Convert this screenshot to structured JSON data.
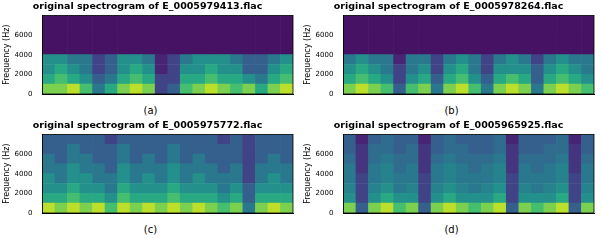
{
  "chart_data": [
    {
      "type": "heatmap",
      "title": "original spectrogram of E_0005979413.flac",
      "y_label": "Frequency (Hz)",
      "caption": "(a)",
      "ylim": [
        0,
        8000
      ],
      "yticks": [
        0,
        2000,
        4000,
        6000
      ],
      "tick_labels": "y",
      "grid": false,
      "color": "viridis",
      "zlim": [
        0,
        1
      ],
      "freq_bins": [
        0,
        1000,
        2000,
        3000,
        4000,
        5000,
        6000,
        7000,
        8000
      ],
      "cells": [
        [
          0.8,
          0.8,
          0.9,
          0.7,
          0.4,
          0.6,
          0.8,
          0.9,
          0.8,
          0.2,
          0.3,
          0.7,
          0.8,
          0.9,
          0.8,
          0.7,
          0.8,
          0.6,
          0.8,
          0.9
        ],
        [
          0.6,
          0.7,
          0.6,
          0.5,
          0.3,
          0.4,
          0.6,
          0.7,
          0.6,
          0.2,
          0.2,
          0.6,
          0.6,
          0.7,
          0.6,
          0.6,
          0.5,
          0.4,
          0.6,
          0.7
        ],
        [
          0.5,
          0.6,
          0.5,
          0.4,
          0.2,
          0.3,
          0.5,
          0.6,
          0.5,
          0.1,
          0.2,
          0.5,
          0.5,
          0.6,
          0.5,
          0.5,
          0.3,
          0.3,
          0.5,
          0.6
        ],
        [
          0.5,
          0.5,
          0.4,
          0.4,
          0.2,
          0.3,
          0.5,
          0.5,
          0.4,
          0.1,
          0.2,
          0.4,
          0.5,
          0.5,
          0.5,
          0.4,
          0.3,
          0.3,
          0.4,
          0.5
        ],
        [
          0.05,
          0.05,
          0.05,
          0.05,
          0.05,
          0.05,
          0.05,
          0.05,
          0.05,
          0.05,
          0.05,
          0.05,
          0.05,
          0.05,
          0.05,
          0.05,
          0.05,
          0.05,
          0.05,
          0.05
        ],
        [
          0.05,
          0.05,
          0.05,
          0.05,
          0.05,
          0.05,
          0.05,
          0.05,
          0.05,
          0.05,
          0.05,
          0.05,
          0.05,
          0.05,
          0.05,
          0.05,
          0.05,
          0.05,
          0.05,
          0.05
        ],
        [
          0.05,
          0.05,
          0.05,
          0.05,
          0.05,
          0.05,
          0.05,
          0.05,
          0.05,
          0.05,
          0.05,
          0.05,
          0.05,
          0.05,
          0.05,
          0.05,
          0.05,
          0.05,
          0.05,
          0.05
        ],
        [
          0.05,
          0.05,
          0.05,
          0.05,
          0.05,
          0.05,
          0.05,
          0.05,
          0.05,
          0.05,
          0.05,
          0.05,
          0.05,
          0.05,
          0.05,
          0.05,
          0.05,
          0.05,
          0.05,
          0.05
        ]
      ]
    },
    {
      "type": "heatmap",
      "title": "original spectrogram of E_0005978264.flac",
      "y_label": "Frequency (Hz)",
      "caption": "(b)",
      "ylim": [
        0,
        8000
      ],
      "yticks": [
        0,
        2000,
        4000,
        6000
      ],
      "tick_labels": "y",
      "grid": false,
      "color": "viridis",
      "zlim": [
        0,
        1
      ],
      "freq_bins": [
        0,
        1000,
        2000,
        3000,
        4000,
        5000,
        6000,
        7000,
        8000
      ],
      "cells": [
        [
          0.8,
          0.9,
          0.8,
          0.7,
          0.3,
          0.7,
          0.8,
          0.4,
          0.8,
          0.9,
          0.7,
          0.4,
          0.8,
          0.9,
          0.8,
          0.4,
          0.8,
          0.9,
          0.8,
          0.7
        ],
        [
          0.6,
          0.7,
          0.6,
          0.5,
          0.2,
          0.5,
          0.6,
          0.3,
          0.6,
          0.7,
          0.5,
          0.3,
          0.6,
          0.7,
          0.6,
          0.3,
          0.6,
          0.7,
          0.6,
          0.5
        ],
        [
          0.5,
          0.6,
          0.5,
          0.4,
          0.2,
          0.4,
          0.5,
          0.2,
          0.5,
          0.6,
          0.4,
          0.2,
          0.5,
          0.5,
          0.5,
          0.3,
          0.5,
          0.6,
          0.5,
          0.4
        ],
        [
          0.4,
          0.5,
          0.4,
          0.4,
          0.1,
          0.4,
          0.4,
          0.2,
          0.4,
          0.5,
          0.4,
          0.2,
          0.4,
          0.5,
          0.4,
          0.2,
          0.4,
          0.5,
          0.4,
          0.4
        ],
        [
          0.05,
          0.05,
          0.05,
          0.05,
          0.05,
          0.05,
          0.05,
          0.05,
          0.05,
          0.05,
          0.05,
          0.05,
          0.05,
          0.05,
          0.05,
          0.05,
          0.05,
          0.05,
          0.05,
          0.05
        ],
        [
          0.05,
          0.05,
          0.05,
          0.05,
          0.05,
          0.05,
          0.05,
          0.05,
          0.05,
          0.05,
          0.05,
          0.05,
          0.05,
          0.05,
          0.05,
          0.05,
          0.05,
          0.05,
          0.05,
          0.05
        ],
        [
          0.05,
          0.05,
          0.05,
          0.05,
          0.05,
          0.05,
          0.05,
          0.05,
          0.05,
          0.05,
          0.05,
          0.05,
          0.05,
          0.05,
          0.05,
          0.05,
          0.05,
          0.05,
          0.05,
          0.05
        ],
        [
          0.05,
          0.05,
          0.05,
          0.05,
          0.05,
          0.05,
          0.05,
          0.05,
          0.05,
          0.05,
          0.05,
          0.05,
          0.05,
          0.05,
          0.05,
          0.05,
          0.05,
          0.05,
          0.05,
          0.05
        ]
      ]
    },
    {
      "type": "heatmap",
      "title": "original spectrogram of E_0005975772.flac",
      "y_label": "Frequency (Hz)",
      "caption": "(c)",
      "ylim": [
        0,
        8000
      ],
      "yticks": [
        0,
        2000,
        4000,
        6000
      ],
      "tick_labels": "y",
      "grid": false,
      "color": "viridis",
      "zlim": [
        0,
        1
      ],
      "freq_bins": [
        0,
        1000,
        2000,
        3000,
        4000,
        5000,
        6000,
        7000,
        8000
      ],
      "cells": [
        [
          0.9,
          0.8,
          0.9,
          0.8,
          0.9,
          0.7,
          0.9,
          0.8,
          0.9,
          0.8,
          0.9,
          0.8,
          0.9,
          0.8,
          0.7,
          0.8,
          0.4,
          0.8,
          0.9,
          0.8
        ],
        [
          0.6,
          0.6,
          0.7,
          0.6,
          0.6,
          0.5,
          0.7,
          0.6,
          0.6,
          0.6,
          0.7,
          0.6,
          0.6,
          0.6,
          0.5,
          0.6,
          0.3,
          0.6,
          0.6,
          0.6
        ],
        [
          0.5,
          0.5,
          0.6,
          0.5,
          0.5,
          0.4,
          0.6,
          0.5,
          0.5,
          0.5,
          0.6,
          0.5,
          0.5,
          0.5,
          0.4,
          0.5,
          0.3,
          0.5,
          0.5,
          0.5
        ],
        [
          0.5,
          0.4,
          0.5,
          0.5,
          0.4,
          0.4,
          0.5,
          0.4,
          0.5,
          0.4,
          0.5,
          0.4,
          0.5,
          0.4,
          0.4,
          0.4,
          0.2,
          0.4,
          0.5,
          0.4
        ],
        [
          0.4,
          0.4,
          0.5,
          0.4,
          0.4,
          0.3,
          0.5,
          0.4,
          0.4,
          0.4,
          0.5,
          0.4,
          0.4,
          0.4,
          0.3,
          0.4,
          0.2,
          0.4,
          0.4,
          0.4
        ],
        [
          0.4,
          0.3,
          0.4,
          0.4,
          0.3,
          0.3,
          0.4,
          0.3,
          0.4,
          0.3,
          0.4,
          0.3,
          0.4,
          0.3,
          0.3,
          0.3,
          0.2,
          0.3,
          0.4,
          0.3
        ],
        [
          0.3,
          0.3,
          0.4,
          0.3,
          0.3,
          0.3,
          0.4,
          0.3,
          0.3,
          0.3,
          0.4,
          0.3,
          0.3,
          0.3,
          0.3,
          0.3,
          0.2,
          0.3,
          0.3,
          0.3
        ],
        [
          0.3,
          0.3,
          0.3,
          0.3,
          0.3,
          0.2,
          0.3,
          0.3,
          0.3,
          0.3,
          0.3,
          0.3,
          0.3,
          0.3,
          0.2,
          0.3,
          0.2,
          0.3,
          0.3,
          0.3
        ]
      ]
    },
    {
      "type": "heatmap",
      "title": "original spectrogram of E_0005965925.flac",
      "y_label": "Frequency (Hz)",
      "caption": "(d)",
      "ylim": [
        0,
        8000
      ],
      "yticks": [
        0,
        2000,
        4000,
        6000
      ],
      "tick_labels": "y",
      "grid": false,
      "color": "viridis",
      "zlim": [
        0,
        1
      ],
      "freq_bins": [
        0,
        1000,
        2000,
        3000,
        4000,
        5000,
        6000,
        7000,
        8000
      ],
      "cells": [
        [
          0.8,
          0.3,
          0.8,
          0.9,
          0.7,
          0.8,
          0.3,
          0.8,
          0.9,
          0.8,
          0.7,
          0.8,
          0.9,
          0.3,
          0.8,
          0.7,
          0.8,
          0.9,
          0.3,
          0.8
        ],
        [
          0.5,
          0.2,
          0.5,
          0.6,
          0.5,
          0.5,
          0.2,
          0.5,
          0.6,
          0.5,
          0.5,
          0.5,
          0.6,
          0.2,
          0.5,
          0.5,
          0.5,
          0.6,
          0.2,
          0.5
        ],
        [
          0.45,
          0.2,
          0.45,
          0.5,
          0.4,
          0.45,
          0.2,
          0.45,
          0.5,
          0.45,
          0.4,
          0.45,
          0.5,
          0.2,
          0.45,
          0.4,
          0.45,
          0.5,
          0.2,
          0.45
        ],
        [
          0.4,
          0.2,
          0.4,
          0.45,
          0.4,
          0.4,
          0.2,
          0.4,
          0.45,
          0.4,
          0.4,
          0.4,
          0.45,
          0.2,
          0.4,
          0.4,
          0.4,
          0.45,
          0.2,
          0.4
        ],
        [
          0.4,
          0.15,
          0.4,
          0.45,
          0.35,
          0.4,
          0.15,
          0.4,
          0.45,
          0.4,
          0.35,
          0.4,
          0.45,
          0.15,
          0.4,
          0.35,
          0.4,
          0.45,
          0.15,
          0.4
        ],
        [
          0.35,
          0.15,
          0.35,
          0.4,
          0.35,
          0.35,
          0.15,
          0.35,
          0.4,
          0.35,
          0.35,
          0.35,
          0.4,
          0.15,
          0.35,
          0.35,
          0.35,
          0.4,
          0.15,
          0.35
        ],
        [
          0.3,
          0.15,
          0.35,
          0.35,
          0.3,
          0.35,
          0.15,
          0.3,
          0.35,
          0.35,
          0.3,
          0.3,
          0.35,
          0.15,
          0.3,
          0.3,
          0.35,
          0.35,
          0.15,
          0.3
        ],
        [
          0.3,
          0.1,
          0.3,
          0.35,
          0.3,
          0.3,
          0.1,
          0.3,
          0.35,
          0.3,
          0.3,
          0.3,
          0.35,
          0.1,
          0.3,
          0.3,
          0.3,
          0.35,
          0.1,
          0.3
        ]
      ]
    }
  ]
}
